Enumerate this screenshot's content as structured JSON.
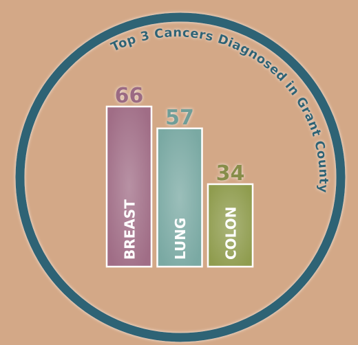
{
  "chart_data": {
    "type": "bar",
    "title": "Top 3 Cancers Diagnosed in Grant County",
    "categories": [
      "BREAST",
      "LUNG",
      "COLON"
    ],
    "values": [
      66,
      57,
      34
    ],
    "colors": [
      "#a06d86",
      "#7aa9a3",
      "#8f9c4e"
    ],
    "label_colors": [
      "#9b6a83",
      "#6f9e98",
      "#878d48"
    ]
  }
}
